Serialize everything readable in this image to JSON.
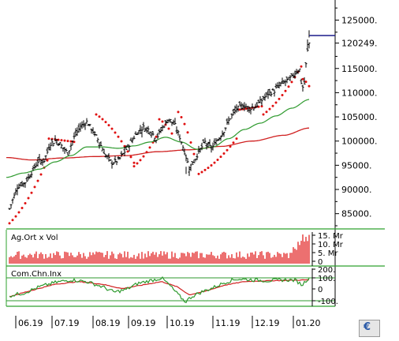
{
  "chart_data": {
    "type": "line",
    "main": {
      "series": [
        {
          "kind": "candlestick",
          "color": "#000000"
        },
        {
          "kind": "parabolic-sar",
          "color": "#e01010"
        },
        {
          "kind": "moving-average",
          "color": "#2e9a2e"
        },
        {
          "kind": "moving-average",
          "color": "#d02020"
        }
      ],
      "ylim": [
        82500,
        128500
      ],
      "y_ticks": [
        "125000.",
        "120249.",
        "115000.",
        "110000.",
        "105000.",
        "100000.",
        "95000.",
        "90000.",
        "85000."
      ],
      "last_value": "120249.",
      "x_ticks": [
        "06.19",
        "07.19",
        "08.19",
        "09.19",
        "10.19",
        "11.19",
        "12.19",
        "01.20"
      ]
    },
    "volume_panel": {
      "label": "Ag.Ort x Vol",
      "y_ticks": [
        "15. Mr",
        "10. Mr",
        "5. Mr",
        "0"
      ],
      "color": "#e01010"
    },
    "cci_panel": {
      "label": "Com.Chn.Inx",
      "y_ticks": [
        "200.",
        "100.",
        "0",
        "-100."
      ],
      "levels": [
        100,
        -100
      ],
      "series": [
        {
          "kind": "cci",
          "color": "#2e9a2e"
        },
        {
          "kind": "signal",
          "color": "#d02020"
        }
      ]
    },
    "colors": {
      "frame": "#2ea02e",
      "volume": "#e01010",
      "sar": "#e01010",
      "ma_short": "#2e9a2e",
      "ma_long": "#d02020",
      "price": "#000000"
    }
  }
}
